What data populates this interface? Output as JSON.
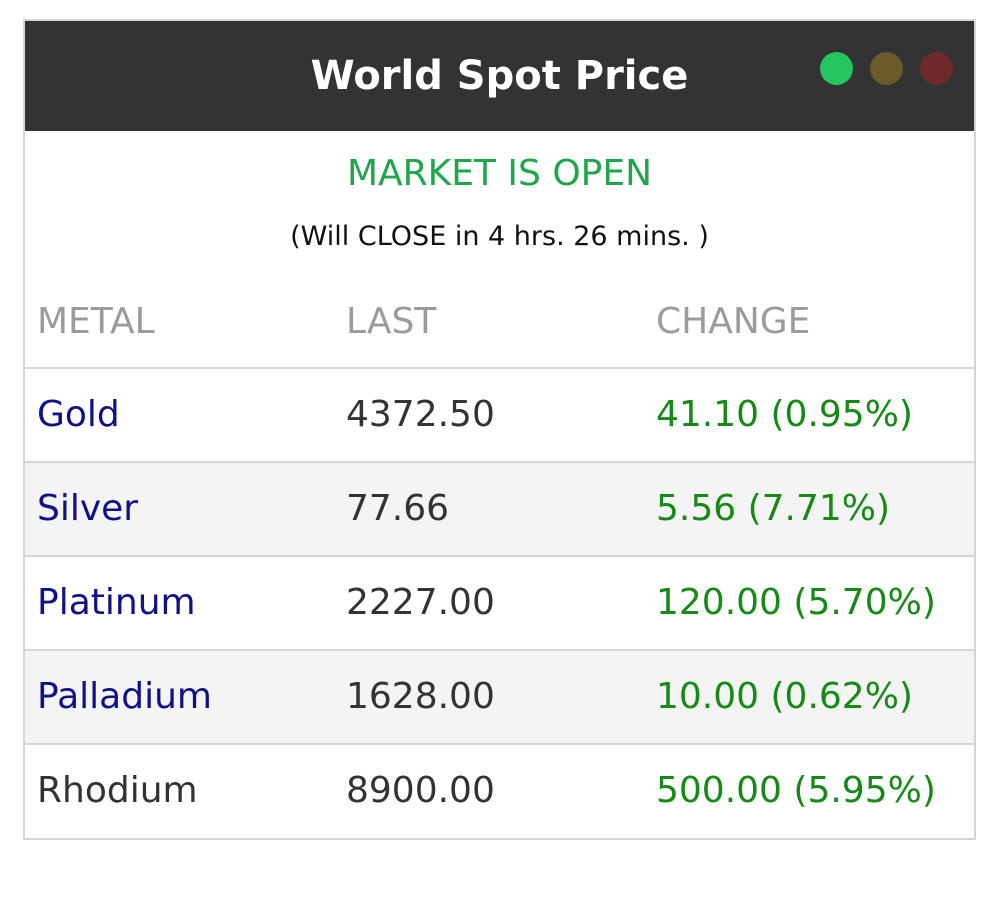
{
  "widget": {
    "title": "World Spot Price",
    "window_dots": [
      {
        "name": "green-dot",
        "color": "#22c55e"
      },
      {
        "name": "olive-dot",
        "color": "#6b5a2a"
      },
      {
        "name": "red-dot",
        "color": "#6e2a2a"
      }
    ]
  },
  "market": {
    "status": "MARKET IS OPEN",
    "status_color": "#1fa64a",
    "countdown": "(Will CLOSE in 4 hrs. 26 mins. )"
  },
  "table": {
    "headers": [
      "METAL",
      "LAST",
      "CHANGE"
    ],
    "rows": [
      {
        "metal": "Gold",
        "last": "4372.50",
        "change": "41.10 (0.95%)",
        "linked": true
      },
      {
        "metal": "Silver",
        "last": "77.66",
        "change": "5.56 (7.71%)",
        "linked": true
      },
      {
        "metal": "Platinum",
        "last": "2227.00",
        "change": "120.00 (5.70%)",
        "linked": true
      },
      {
        "metal": "Palladium",
        "last": "1628.00",
        "change": "10.00 (0.62%)",
        "linked": true
      },
      {
        "metal": "Rhodium",
        "last": "8900.00",
        "change": "500.00 (5.95%)",
        "linked": false
      }
    ]
  },
  "colors": {
    "titlebar": "#333333",
    "link": "#10108a",
    "positive_change": "#158a15"
  }
}
